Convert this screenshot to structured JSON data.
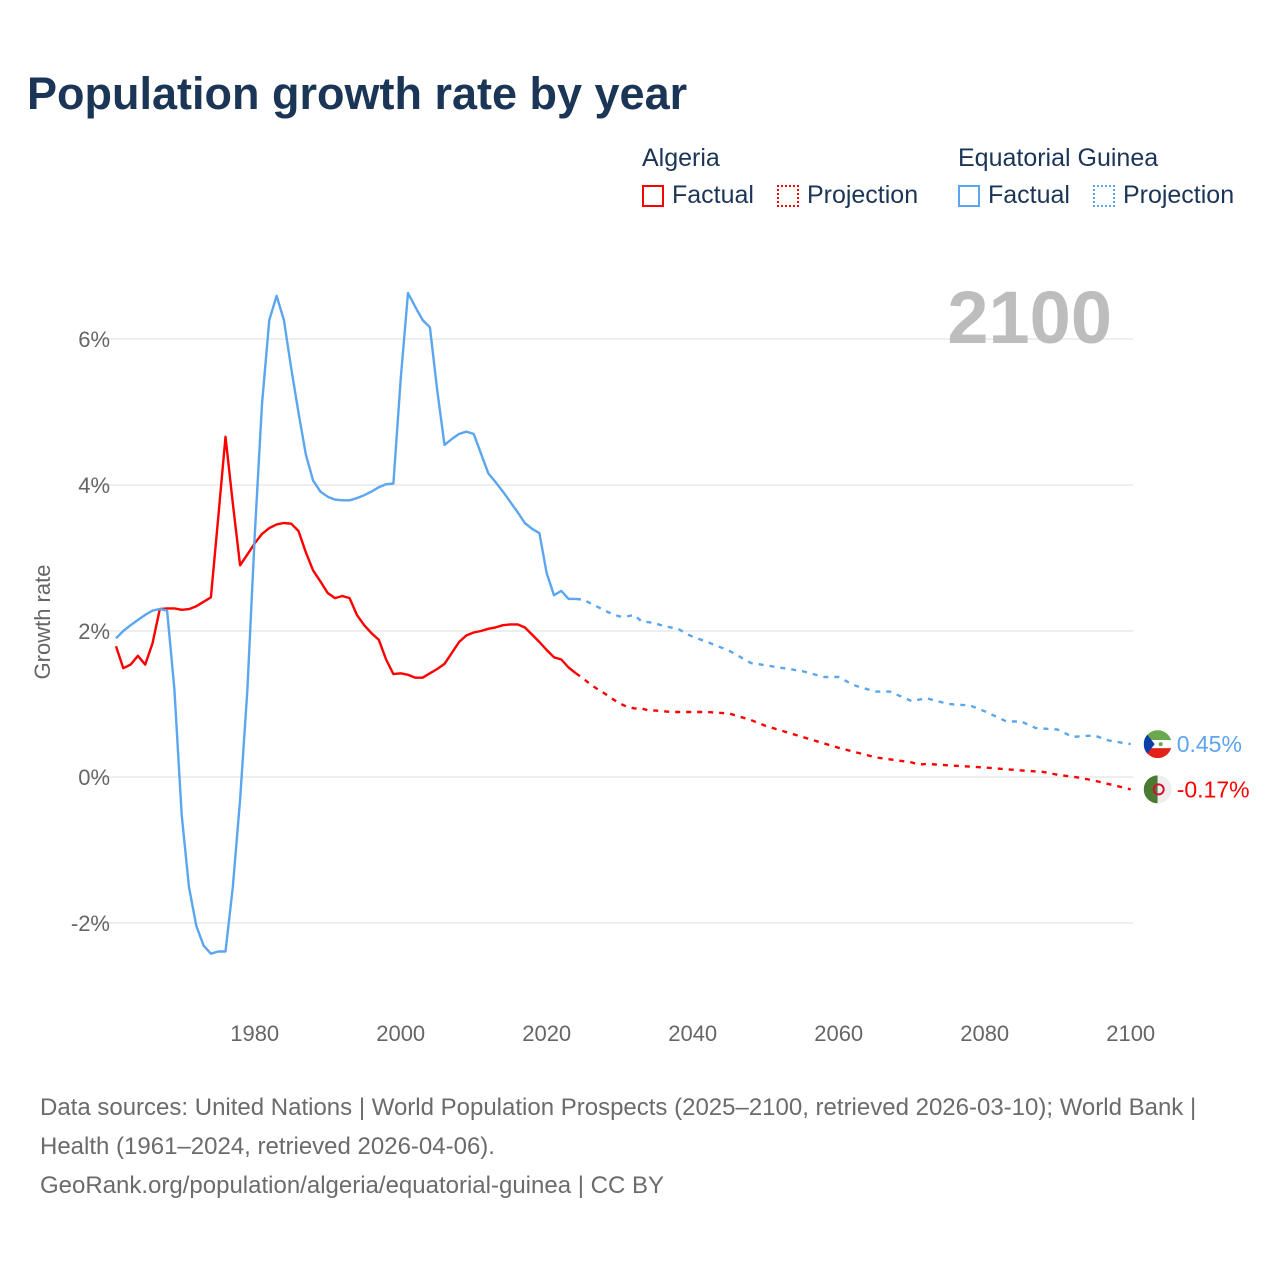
{
  "title": "Population growth rate by year",
  "legend": [
    {
      "group": "Algeria",
      "color": "#ff0000",
      "factual_label": "Factual",
      "projection_label": "Projection"
    },
    {
      "group": "Equatorial Guinea",
      "color": "#5ba6ee",
      "factual_label": "Factual",
      "projection_label": "Projection"
    }
  ],
  "footer": {
    "sources": "Data sources: United Nations | World Population Prospects (2025–2100, retrieved 2026-03-10); World Bank | Health (1961–2024, retrieved 2026-04-06).",
    "credit": "GeoRank.org/population/algeria/equatorial-guinea | CC BY"
  },
  "chart_data": {
    "type": "line",
    "title": "Population growth rate by year",
    "ylabel": "Growth rate",
    "xlabel": "",
    "current_year_display": "2100",
    "xlim": [
      1961,
      2100
    ],
    "ylim": [
      -2.9,
      7
    ],
    "grid": true,
    "yticks": [
      {
        "value": -2,
        "label": "-2%"
      },
      {
        "value": 0,
        "label": "0%"
      },
      {
        "value": 2,
        "label": "2%"
      },
      {
        "value": 4,
        "label": "4%"
      },
      {
        "value": 6,
        "label": "6%"
      }
    ],
    "xticks": [
      {
        "value": 1980,
        "label": "1980"
      },
      {
        "value": 2000,
        "label": "2000"
      },
      {
        "value": 2020,
        "label": "2020"
      },
      {
        "value": 2040,
        "label": "2040"
      },
      {
        "value": 2060,
        "label": "2060"
      },
      {
        "value": 2080,
        "label": "2080"
      },
      {
        "value": 2100,
        "label": "2100"
      }
    ],
    "series": [
      {
        "name": "Algeria",
        "color": "#ff0000",
        "end_label": "-0.17%",
        "flag": "algeria-flag",
        "factual": [
          [
            1961,
            1.79
          ],
          [
            1962,
            1.49
          ],
          [
            1963,
            1.54
          ],
          [
            1964,
            1.66
          ],
          [
            1965,
            1.54
          ],
          [
            1966,
            1.83
          ],
          [
            1967,
            2.3
          ],
          [
            1968,
            2.31
          ],
          [
            1969,
            2.31
          ],
          [
            1970,
            2.29
          ],
          [
            1971,
            2.3
          ],
          [
            1972,
            2.34
          ],
          [
            1973,
            2.4
          ],
          [
            1974,
            2.46
          ],
          [
            1975,
            3.55
          ],
          [
            1976,
            4.66
          ],
          [
            1977,
            3.75
          ],
          [
            1978,
            2.9
          ],
          [
            1979,
            3.05
          ],
          [
            1980,
            3.2
          ],
          [
            1981,
            3.33
          ],
          [
            1982,
            3.41
          ],
          [
            1983,
            3.46
          ],
          [
            1984,
            3.48
          ],
          [
            1985,
            3.47
          ],
          [
            1986,
            3.37
          ],
          [
            1987,
            3.08
          ],
          [
            1988,
            2.83
          ],
          [
            1989,
            2.68
          ],
          [
            1990,
            2.52
          ],
          [
            1991,
            2.45
          ],
          [
            1992,
            2.48
          ],
          [
            1993,
            2.45
          ],
          [
            1994,
            2.22
          ],
          [
            1995,
            2.08
          ],
          [
            1996,
            1.97
          ],
          [
            1997,
            1.88
          ],
          [
            1998,
            1.61
          ],
          [
            1999,
            1.41
          ],
          [
            2000,
            1.42
          ],
          [
            2001,
            1.4
          ],
          [
            2002,
            1.36
          ],
          [
            2003,
            1.36
          ],
          [
            2004,
            1.42
          ],
          [
            2005,
            1.48
          ],
          [
            2006,
            1.55
          ],
          [
            2007,
            1.7
          ],
          [
            2008,
            1.85
          ],
          [
            2009,
            1.94
          ],
          [
            2010,
            1.98
          ],
          [
            2011,
            2.0
          ],
          [
            2012,
            2.03
          ],
          [
            2013,
            2.05
          ],
          [
            2014,
            2.08
          ],
          [
            2015,
            2.09
          ],
          [
            2016,
            2.09
          ],
          [
            2017,
            2.05
          ],
          [
            2018,
            1.95
          ],
          [
            2019,
            1.85
          ],
          [
            2020,
            1.74
          ],
          [
            2021,
            1.64
          ],
          [
            2022,
            1.61
          ],
          [
            2023,
            1.5
          ],
          [
            2024,
            1.42
          ]
        ],
        "projection": [
          [
            2024,
            1.42
          ],
          [
            2025,
            1.35
          ],
          [
            2026,
            1.27
          ],
          [
            2027,
            1.2
          ],
          [
            2028,
            1.14
          ],
          [
            2029,
            1.07
          ],
          [
            2030,
            1.01
          ],
          [
            2031,
            0.96
          ],
          [
            2032,
            0.94
          ],
          [
            2033,
            0.94
          ],
          [
            2034,
            0.91
          ],
          [
            2035,
            0.91
          ],
          [
            2037,
            0.89
          ],
          [
            2039,
            0.89
          ],
          [
            2042,
            0.89
          ],
          [
            2045,
            0.87
          ],
          [
            2048,
            0.78
          ],
          [
            2050,
            0.7
          ],
          [
            2055,
            0.55
          ],
          [
            2060,
            0.4
          ],
          [
            2065,
            0.27
          ],
          [
            2070,
            0.2
          ],
          [
            2071,
            0.17
          ],
          [
            2072,
            0.18
          ],
          [
            2075,
            0.16
          ],
          [
            2080,
            0.13
          ],
          [
            2085,
            0.09
          ],
          [
            2088,
            0.07
          ],
          [
            2090,
            0.03
          ],
          [
            2093,
            -0.01
          ],
          [
            2095,
            -0.05
          ],
          [
            2098,
            -0.12
          ],
          [
            2100,
            -0.17
          ]
        ]
      },
      {
        "name": "Equatorial Guinea",
        "color": "#5ba6ee",
        "end_label": "0.45%",
        "flag": "equatorial-guinea-flag",
        "factual": [
          [
            1961,
            1.9
          ],
          [
            1962,
            2.0
          ],
          [
            1963,
            2.08
          ],
          [
            1964,
            2.15
          ],
          [
            1965,
            2.22
          ],
          [
            1966,
            2.28
          ],
          [
            1967,
            2.3
          ],
          [
            1968,
            2.28
          ],
          [
            1969,
            1.2
          ],
          [
            1970,
            -0.52
          ],
          [
            1971,
            -1.51
          ],
          [
            1972,
            -2.04
          ],
          [
            1973,
            -2.31
          ],
          [
            1974,
            -2.42
          ],
          [
            1975,
            -2.39
          ],
          [
            1976,
            -2.39
          ],
          [
            1977,
            -1.51
          ],
          [
            1978,
            -0.31
          ],
          [
            1979,
            1.2
          ],
          [
            1980,
            3.3
          ],
          [
            1981,
            5.11
          ],
          [
            1982,
            6.26
          ],
          [
            1983,
            6.59
          ],
          [
            1984,
            6.26
          ],
          [
            1985,
            5.6
          ],
          [
            1986,
            4.99
          ],
          [
            1987,
            4.42
          ],
          [
            1988,
            4.06
          ],
          [
            1989,
            3.91
          ],
          [
            1990,
            3.84
          ],
          [
            1991,
            3.8
          ],
          [
            1992,
            3.79
          ],
          [
            1993,
            3.79
          ],
          [
            1994,
            3.82
          ],
          [
            1995,
            3.86
          ],
          [
            1996,
            3.91
          ],
          [
            1997,
            3.97
          ],
          [
            1998,
            4.01
          ],
          [
            1999,
            4.02
          ],
          [
            2000,
            5.45
          ],
          [
            2001,
            6.63
          ],
          [
            2002,
            6.44
          ],
          [
            2003,
            6.26
          ],
          [
            2004,
            6.16
          ],
          [
            2005,
            5.3
          ],
          [
            2006,
            4.55
          ],
          [
            2007,
            4.63
          ],
          [
            2008,
            4.7
          ],
          [
            2009,
            4.73
          ],
          [
            2010,
            4.7
          ],
          [
            2011,
            4.43
          ],
          [
            2012,
            4.16
          ],
          [
            2013,
            4.04
          ],
          [
            2014,
            3.91
          ],
          [
            2015,
            3.77
          ],
          [
            2016,
            3.63
          ],
          [
            2017,
            3.48
          ],
          [
            2018,
            3.4
          ],
          [
            2019,
            3.34
          ],
          [
            2020,
            2.79
          ],
          [
            2021,
            2.49
          ],
          [
            2022,
            2.55
          ],
          [
            2023,
            2.44
          ],
          [
            2024,
            2.44
          ]
        ],
        "projection": [
          [
            2024,
            2.44
          ],
          [
            2025,
            2.43
          ],
          [
            2026,
            2.38
          ],
          [
            2027,
            2.33
          ],
          [
            2028,
            2.28
          ],
          [
            2029,
            2.23
          ],
          [
            2030,
            2.2
          ],
          [
            2031,
            2.2
          ],
          [
            2032,
            2.22
          ],
          [
            2033,
            2.13
          ],
          [
            2034,
            2.12
          ],
          [
            2035,
            2.1
          ],
          [
            2036,
            2.07
          ],
          [
            2037,
            2.05
          ],
          [
            2038,
            2.03
          ],
          [
            2039,
            1.97
          ],
          [
            2040,
            1.92
          ],
          [
            2042,
            1.85
          ],
          [
            2045,
            1.73
          ],
          [
            2048,
            1.56
          ],
          [
            2050,
            1.53
          ],
          [
            2055,
            1.45
          ],
          [
            2058,
            1.37
          ],
          [
            2060,
            1.37
          ],
          [
            2062,
            1.26
          ],
          [
            2065,
            1.17
          ],
          [
            2067,
            1.17
          ],
          [
            2070,
            1.04
          ],
          [
            2072,
            1.08
          ],
          [
            2075,
            1.0
          ],
          [
            2078,
            0.98
          ],
          [
            2080,
            0.9
          ],
          [
            2083,
            0.76
          ],
          [
            2085,
            0.76
          ],
          [
            2087,
            0.67
          ],
          [
            2090,
            0.65
          ],
          [
            2092,
            0.55
          ],
          [
            2095,
            0.57
          ],
          [
            2097,
            0.5
          ],
          [
            2100,
            0.45
          ]
        ]
      }
    ]
  }
}
